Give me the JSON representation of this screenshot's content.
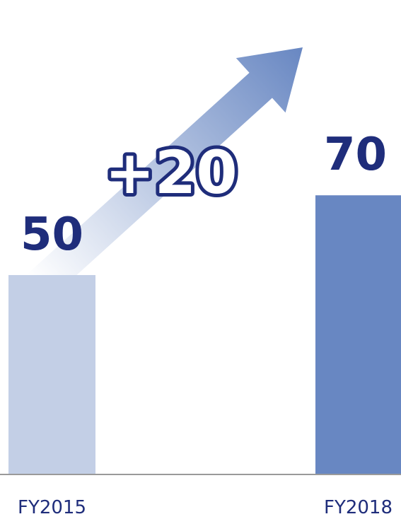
{
  "chart_data": {
    "type": "bar",
    "categories": [
      "FY2015",
      "FY2018"
    ],
    "values": [
      50,
      70
    ],
    "value_labels": [
      "50",
      "70"
    ],
    "annotation": "+20",
    "ylim": [
      0,
      80
    ],
    "grid": false,
    "bar_colors": [
      "#c3cfe6",
      "#6887c2"
    ],
    "text_color": "#1f2d7b",
    "baseline_color": "#9a9a9a"
  }
}
